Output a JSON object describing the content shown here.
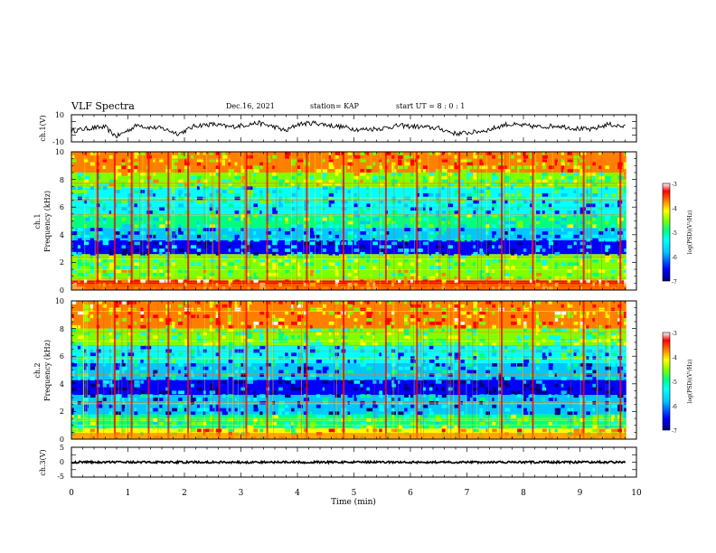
{
  "header": {
    "title": "VLF Spectra",
    "date": "Dec.16, 2021",
    "station": "station= KAP",
    "start": "start  UT =   8 : 0  : 1"
  },
  "chart_data": [
    {
      "type": "line",
      "panel": "ch1-waveform",
      "ylabel": "ch.1(V)",
      "ylim": [
        -10,
        10
      ],
      "yticks": [
        "10",
        "-10"
      ],
      "xlim": [
        0,
        10
      ],
      "x": [
        0,
        0.3,
        0.6,
        0.7,
        0.8,
        1.2,
        1.3,
        1.6,
        1.9,
        2.2,
        2.5,
        2.8,
        3.0,
        3.3,
        3.6,
        3.8,
        4.0,
        4.3,
        4.6,
        4.8,
        5.1,
        5.5,
        5.8,
        6.2,
        6.5,
        6.8,
        7.1,
        7.4,
        7.7,
        8.0,
        8.3,
        8.6,
        8.9,
        9.2,
        9.5,
        9.8
      ],
      "y": [
        -2,
        0,
        1,
        -3,
        -6,
        3,
        1,
        0,
        -4,
        2,
        3,
        1,
        2,
        4,
        1,
        -2,
        3,
        4,
        2,
        1,
        -1,
        0,
        2,
        1,
        0,
        -4,
        -3,
        -1,
        3,
        2,
        1,
        2,
        0,
        -1,
        3,
        1
      ]
    },
    {
      "type": "heatmap",
      "panel": "ch1-spectrogram",
      "ylabel_line1": "ch.1",
      "ylabel_line2": "Frequency (kHz)",
      "ylim": [
        0,
        10
      ],
      "yticks": [
        "0",
        "2",
        "4",
        "6",
        "8",
        "10"
      ],
      "xlim": [
        0,
        10
      ],
      "colorbar": {
        "label": "log(PSD)(V²/Hz)",
        "range": [
          -7,
          -3
        ],
        "ticks": [
          "-3",
          "-4",
          "-5",
          "-6",
          "-7"
        ]
      },
      "bands": [
        {
          "f": [
            0,
            0.7
          ],
          "level": -3.6
        },
        {
          "f": [
            0.7,
            1.5
          ],
          "level": -4.8
        },
        {
          "f": [
            1.5,
            2.6
          ],
          "level": -5.0
        },
        {
          "f": [
            2.6,
            3.6
          ],
          "level": -6.2
        },
        {
          "f": [
            3.6,
            4.5
          ],
          "level": -5.9
        },
        {
          "f": [
            4.5,
            5.4
          ],
          "level": -5.3
        },
        {
          "f": [
            5.4,
            6.2
          ],
          "level": -5.8
        },
        {
          "f": [
            6.2,
            7.4
          ],
          "level": -5.5
        },
        {
          "f": [
            7.4,
            8.5
          ],
          "level": -4.9
        },
        {
          "f": [
            8.5,
            10
          ],
          "level": -4.2
        }
      ],
      "bursts_min": [
        0.45,
        0.75,
        1.05,
        1.35,
        1.7,
        2.05,
        2.6,
        3.08,
        3.45,
        4.15,
        4.8,
        5.55,
        6.1,
        6.85,
        7.6,
        8.15,
        9.05,
        9.7
      ]
    },
    {
      "type": "heatmap",
      "panel": "ch2-spectrogram",
      "ylabel_line1": "ch.2",
      "ylabel_line2": "Frequency (kHz)",
      "ylim": [
        0,
        10
      ],
      "yticks": [
        "0",
        "2",
        "4",
        "6",
        "8",
        "10"
      ],
      "xlim": [
        0,
        10
      ],
      "colorbar": {
        "label": "log(PSD)(V²/Hz)",
        "range": [
          -7,
          -3
        ],
        "ticks": [
          "-3",
          "-4",
          "-5",
          "-6",
          "-7"
        ]
      },
      "bands": [
        {
          "f": [
            0,
            0.8
          ],
          "level": -4.4
        },
        {
          "f": [
            0.8,
            1.8
          ],
          "level": -5.2
        },
        {
          "f": [
            1.8,
            3.2
          ],
          "level": -6.1
        },
        {
          "f": [
            3.2,
            4.3
          ],
          "level": -6.5
        },
        {
          "f": [
            4.3,
            5.5
          ],
          "level": -5.9
        },
        {
          "f": [
            5.5,
            6.8
          ],
          "level": -5.7
        },
        {
          "f": [
            6.8,
            8.0
          ],
          "level": -5.0
        },
        {
          "f": [
            8.0,
            10
          ],
          "level": -4.1
        }
      ],
      "bursts_min": [
        0.45,
        0.75,
        1.05,
        1.35,
        1.7,
        2.05,
        2.6,
        3.08,
        3.45,
        4.15,
        4.8,
        5.55,
        6.1,
        6.85,
        7.6,
        8.15,
        9.05,
        9.7
      ]
    },
    {
      "type": "line",
      "panel": "ch3-waveform",
      "ylabel": "ch.3(V)",
      "ylim": [
        -5,
        5
      ],
      "yticks": [
        "5",
        "0",
        "-5"
      ],
      "xlim": [
        0,
        10
      ],
      "x": [
        0,
        9.8
      ],
      "y": [
        0,
        0
      ],
      "xlabel": "Time (min)",
      "xticks": [
        "0",
        "1",
        "2",
        "3",
        "4",
        "5",
        "6",
        "7",
        "8",
        "9",
        "10"
      ]
    }
  ],
  "colors": {
    "axis": "#000000",
    "trace": "#000000",
    "colormap": [
      "#000080",
      "#0000ff",
      "#00c8ff",
      "#00ffff",
      "#00ff80",
      "#80ff00",
      "#ffff00",
      "#ff8000",
      "#ff0000",
      "#ffffff"
    ]
  }
}
